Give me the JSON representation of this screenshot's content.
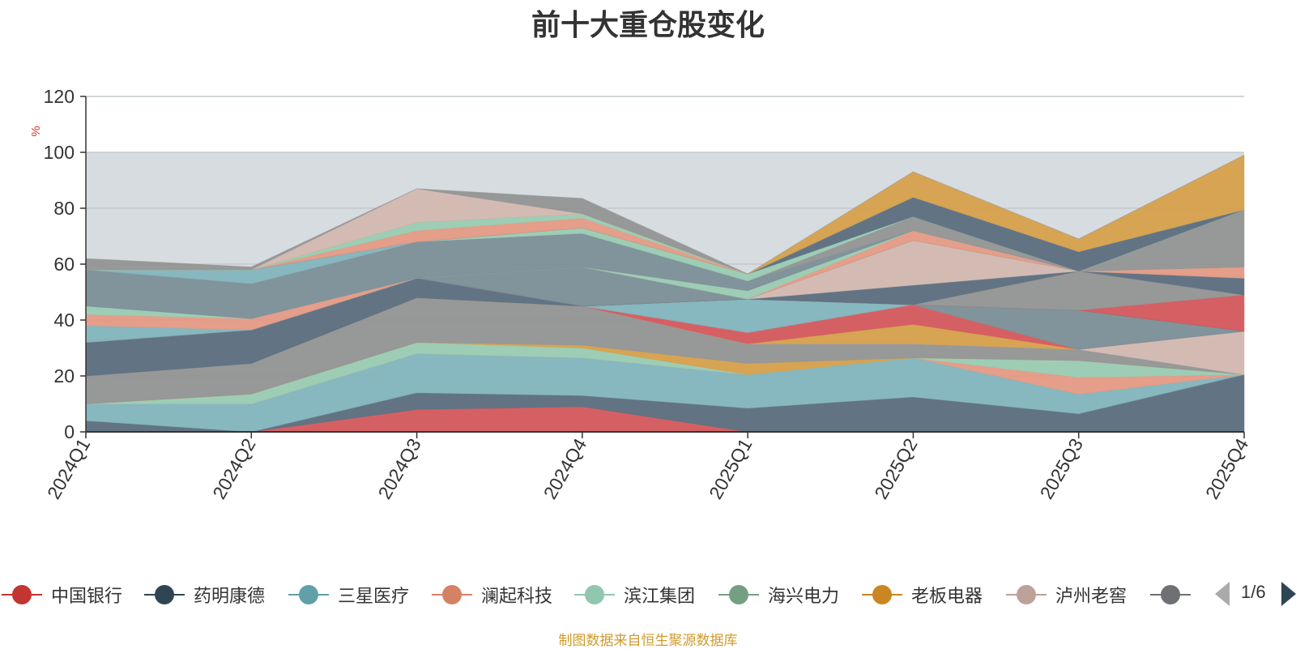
{
  "title": "前十大重仓股变化",
  "source": "制图数据来自恒生聚源数据库",
  "pager": {
    "text": "1/6"
  },
  "chart_data": {
    "type": "area",
    "stacked": true,
    "title": "前十大重仓股变化",
    "ylabel": "%",
    "ylim": [
      0,
      120
    ],
    "yticks": [
      0,
      20,
      40,
      60,
      80,
      100,
      120
    ],
    "grid": true,
    "legend_position": "bottom",
    "categories": [
      "2024Q1",
      "2024Q2",
      "2024Q3",
      "2024Q4",
      "2025Q1",
      "2025Q2",
      "2025Q3",
      "2025Q4"
    ],
    "layers": [
      {
        "color": "#d5595d",
        "values": [
          0,
          0,
          8,
          9,
          0,
          0,
          0,
          0
        ]
      },
      {
        "color": "#5c6e7e",
        "values": [
          4,
          0,
          6,
          4,
          8.5,
          12.5,
          6.5,
          20.5
        ]
      },
      {
        "color": "#83b4bd",
        "values": [
          6,
          10,
          14,
          13.5,
          12,
          14,
          7,
          0
        ]
      },
      {
        "color": "#e59a84",
        "values": [
          0,
          0,
          0,
          0,
          0,
          0,
          6,
          0
        ]
      },
      {
        "color": "#9acbb2",
        "values": [
          0,
          3.5,
          4,
          3.5,
          0,
          0,
          6,
          0
        ]
      },
      {
        "color": "#d6a04b",
        "values": [
          0,
          0,
          0,
          1,
          4,
          0,
          0,
          0
        ]
      },
      {
        "color": "#949494",
        "values": [
          10,
          11,
          16,
          14,
          7,
          5,
          4,
          0
        ]
      },
      {
        "color": "#d3b8b1",
        "values": [
          0,
          0,
          0,
          0,
          0,
          0,
          0,
          15.5
        ]
      },
      {
        "color": "#d6a04b",
        "values": [
          0,
          0,
          0,
          0,
          0,
          7,
          0,
          0
        ]
      },
      {
        "color": "#d5595d",
        "values": [
          0,
          0,
          0,
          0,
          4,
          7,
          0,
          0
        ]
      },
      {
        "color": "#83b4bd",
        "values": [
          0,
          0,
          0,
          0,
          12,
          0,
          0,
          0
        ]
      },
      {
        "color": "#7c8e97",
        "values": [
          0,
          0,
          0,
          0,
          0,
          0,
          14,
          0
        ]
      },
      {
        "color": "#5c6e7e",
        "values": [
          12,
          12,
          7,
          0,
          0,
          0,
          0,
          0
        ]
      },
      {
        "color": "#d5595d",
        "values": [
          0,
          0,
          0,
          0,
          0,
          0,
          0,
          13
        ]
      },
      {
        "color": "#949494",
        "values": [
          0,
          0,
          0,
          0,
          0,
          0,
          14,
          0
        ]
      },
      {
        "color": "#5c6e7e",
        "values": [
          0,
          0,
          0,
          0,
          0,
          7,
          0,
          0
        ]
      },
      {
        "color": "#7c8e97",
        "values": [
          0,
          0,
          0,
          14,
          0,
          0,
          0,
          0
        ]
      },
      {
        "color": "#d3b8b1",
        "values": [
          0,
          0,
          0,
          0,
          0,
          16,
          0,
          0
        ]
      },
      {
        "color": "#5c6e7e",
        "values": [
          0,
          0,
          0,
          0,
          0,
          0,
          0,
          6
        ]
      },
      {
        "color": "#83b4bd",
        "values": [
          6,
          0,
          0,
          0,
          0,
          0,
          0,
          0
        ]
      },
      {
        "color": "#e59a84",
        "values": [
          4,
          4,
          0,
          0,
          0,
          3.5,
          0,
          4
        ]
      },
      {
        "color": "#9acbb2",
        "values": [
          3,
          0,
          0,
          0,
          3,
          0,
          0,
          0
        ]
      },
      {
        "color": "#7c8e97",
        "values": [
          13,
          12.5,
          13,
          12,
          3.5,
          0,
          0,
          0
        ]
      },
      {
        "color": "#949494",
        "values": [
          0,
          0,
          0,
          0,
          0,
          5,
          0,
          20.5
        ]
      },
      {
        "color": "#83b4bd",
        "values": [
          0,
          5,
          0,
          0,
          0,
          0,
          0,
          0
        ]
      },
      {
        "color": "#9acbb2",
        "values": [
          0,
          0,
          0,
          2,
          2.5,
          0,
          0,
          0
        ]
      },
      {
        "color": "#5c6e7e",
        "values": [
          0,
          0,
          0,
          0,
          0,
          7,
          7,
          0
        ]
      },
      {
        "color": "#e59a84",
        "values": [
          0,
          0,
          4,
          3.5,
          0,
          0,
          0,
          0
        ]
      },
      {
        "color": "#9acbb2",
        "values": [
          0,
          0,
          3,
          1.5,
          0,
          0,
          0,
          0
        ]
      },
      {
        "color": "#d6a04b",
        "values": [
          0,
          0,
          0,
          0,
          0,
          9,
          4.5,
          19.5
        ]
      },
      {
        "color": "#d3b8b1",
        "values": [
          0,
          0,
          12,
          0,
          0,
          0,
          0,
          0
        ]
      },
      {
        "color": "#949494",
        "values": [
          4,
          1,
          0,
          5.5,
          0,
          0,
          0,
          0
        ]
      }
    ],
    "series": [
      {
        "name": "中国银行",
        "color": "#c23531"
      },
      {
        "name": "药明康德",
        "color": "#2f4554"
      },
      {
        "name": "三星医疗",
        "color": "#61a0a8"
      },
      {
        "name": "澜起科技",
        "color": "#d48265"
      },
      {
        "name": "滨江集团",
        "color": "#91c7ae"
      },
      {
        "name": "海兴电力",
        "color": "#749f83"
      },
      {
        "name": "老板电器",
        "color": "#ca8622"
      },
      {
        "name": "泸州老窖",
        "color": "#bda29a"
      },
      {
        "name": "",
        "color": "#6e7074"
      }
    ]
  }
}
